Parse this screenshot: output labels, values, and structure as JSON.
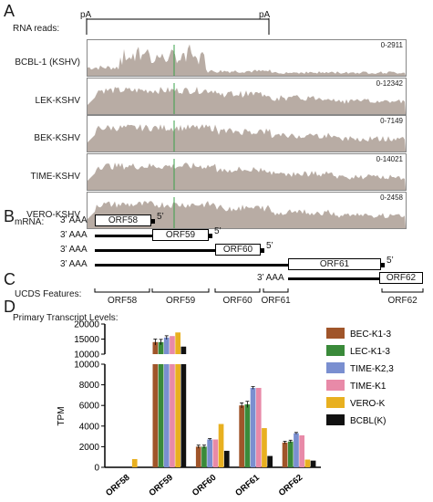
{
  "panels": {
    "a": "A",
    "b": "B",
    "c": "C",
    "d": "D"
  },
  "rna_reads": {
    "title": "RNA reads:",
    "pa1": "pA",
    "pa2": "pA",
    "tracks": [
      {
        "label": "BCBL-1 (KSHV)",
        "range": "0-2911"
      },
      {
        "label": "LEK-KSHV",
        "range": "0-12342"
      },
      {
        "label": "BEK-KSHV",
        "range": "0-7149"
      },
      {
        "label": "TIME-KSHV",
        "range": "0-14021"
      },
      {
        "label": "VERO-KSHV",
        "range": "0-2458"
      }
    ],
    "colors": {
      "coverage": "#b8aca4",
      "marker": "#3aa04a",
      "border": "#888888"
    }
  },
  "mrna": {
    "title": "mRNA:",
    "rows": [
      {
        "three": "3’ AAA",
        "orf": "ORF58",
        "five": "5’"
      },
      {
        "three": "3’ AAA",
        "orf": "ORF59",
        "five": "5’"
      },
      {
        "three": "3’ AAA",
        "orf": "ORF60",
        "five": "5’"
      },
      {
        "three": "3’ AAA",
        "orf": "ORF61",
        "five": "5’"
      },
      {
        "three": "3’ AAA",
        "orf": "ORF62",
        "five": ""
      }
    ]
  },
  "ucds": {
    "title": "UCDS Features:",
    "features": [
      "ORF58",
      "ORF59",
      "ORF60",
      "ORF61",
      "ORF62"
    ]
  },
  "chart_title": "Primary Transcript Levels:",
  "chart_data": {
    "type": "bar",
    "ylabel": "TPM",
    "categories": [
      "ORF58",
      "ORF59",
      "ORF60",
      "ORF61",
      "ORF62"
    ],
    "axis_break": {
      "lower_ylim": [
        0,
        10000
      ],
      "upper_ylim": [
        10000,
        20000
      ]
    },
    "lower_ticks": [
      0,
      2000,
      4000,
      6000,
      8000,
      10000
    ],
    "upper_ticks": [
      10000,
      15000,
      20000
    ],
    "series": [
      {
        "name": "BEC-K1-3",
        "color": "#a0552a",
        "values": [
          0,
          14000,
          2000,
          6000,
          2400
        ],
        "errors": [
          0,
          1000,
          150,
          250,
          120
        ]
      },
      {
        "name": "LEC-K1-3",
        "color": "#3a8a3a",
        "values": [
          0,
          14000,
          2000,
          6100,
          2500
        ],
        "errors": [
          0,
          900,
          150,
          300,
          130
        ]
      },
      {
        "name": "TIME-K2,3",
        "color": "#7a8fd0",
        "values": [
          0,
          15500,
          2700,
          7700,
          3300
        ],
        "errors": [
          0,
          600,
          80,
          120,
          80
        ]
      },
      {
        "name": "TIME-K1",
        "color": "#e88aa8",
        "values": [
          0,
          16000,
          2700,
          7700,
          3100
        ],
        "errors": [
          0,
          0,
          0,
          0,
          0
        ]
      },
      {
        "name": "VERO-K",
        "color": "#e8b020",
        "values": [
          800,
          17200,
          4200,
          3800,
          750
        ],
        "errors": [
          0,
          0,
          0,
          0,
          0
        ]
      },
      {
        "name": "BCBL(K)",
        "color": "#111111",
        "values": [
          0,
          12500,
          1600,
          1100,
          650
        ],
        "errors": [
          0,
          0,
          0,
          0,
          0
        ]
      }
    ]
  }
}
